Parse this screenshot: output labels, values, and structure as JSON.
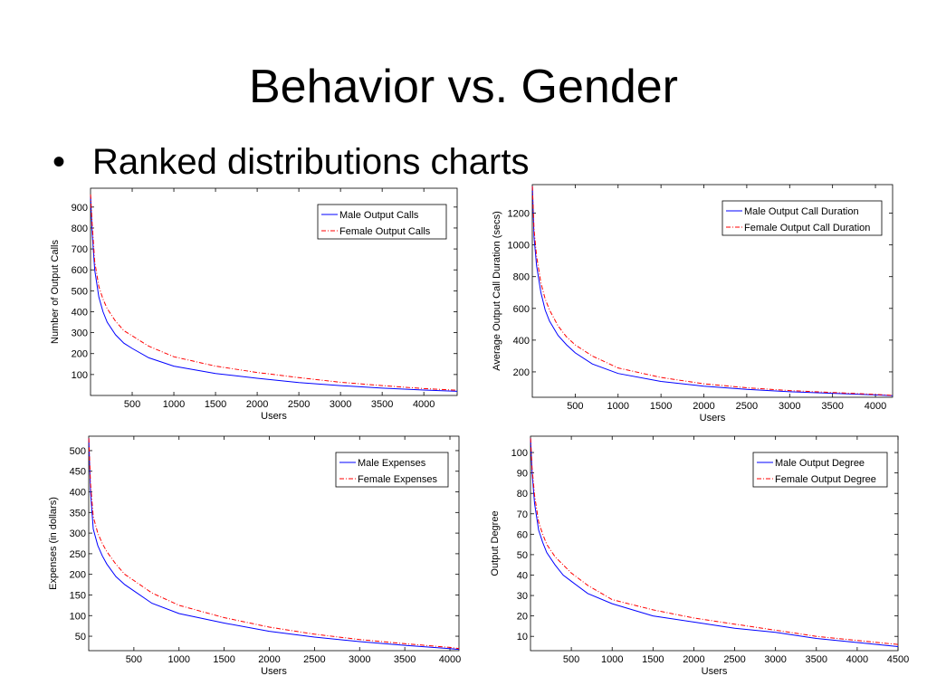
{
  "slide": {
    "title": "Behavior vs. Gender",
    "bullet_symbol": "•",
    "bullet": "Ranked distributions charts"
  },
  "chart_data": [
    {
      "type": "line",
      "title": "",
      "xlabel": "Users",
      "ylabel": "Number of Output Calls",
      "xlim": [
        0,
        4400
      ],
      "ylim": [
        0,
        990
      ],
      "xticks": [
        500,
        1000,
        1500,
        2000,
        2500,
        3000,
        3500,
        4000
      ],
      "yticks": [
        100,
        200,
        300,
        400,
        500,
        600,
        700,
        800,
        900
      ],
      "grid": false,
      "legend_position": "top-right",
      "series": [
        {
          "name": "Male Output Calls",
          "color": "#0000ff",
          "style": "solid",
          "x": [
            1,
            20,
            50,
            100,
            150,
            200,
            300,
            400,
            500,
            700,
            1000,
            1500,
            2000,
            2500,
            3000,
            3500,
            4000,
            4400
          ],
          "y": [
            950,
            780,
            600,
            470,
            400,
            350,
            290,
            250,
            225,
            180,
            140,
            105,
            82,
            62,
            47,
            35,
            26,
            20
          ]
        },
        {
          "name": "Female Output Calls",
          "color": "#ff0000",
          "style": "dashdot",
          "x": [
            1,
            20,
            50,
            100,
            150,
            200,
            300,
            400,
            500,
            700,
            1000,
            1500,
            2000,
            2500,
            3000,
            3500,
            4000,
            4400
          ],
          "y": [
            960,
            820,
            640,
            520,
            460,
            415,
            355,
            310,
            285,
            235,
            185,
            140,
            110,
            85,
            63,
            47,
            33,
            25
          ]
        }
      ]
    },
    {
      "type": "line",
      "title": "",
      "xlabel": "Users",
      "ylabel": "Average Output Call Duration (secs)",
      "xlim": [
        0,
        4200
      ],
      "ylim": [
        40,
        1380
      ],
      "xticks": [
        500,
        1000,
        1500,
        2000,
        2500,
        3000,
        3500,
        4000
      ],
      "yticks": [
        200,
        400,
        600,
        800,
        1000,
        1200
      ],
      "grid": false,
      "legend_position": "top-right",
      "series": [
        {
          "name": "Male Output Call Duration",
          "color": "#0000ff",
          "style": "solid",
          "x": [
            1,
            20,
            50,
            100,
            150,
            200,
            300,
            400,
            500,
            700,
            1000,
            1500,
            2000,
            2500,
            3000,
            3500,
            4000,
            4200
          ],
          "y": [
            1370,
            1050,
            870,
            700,
            590,
            520,
            430,
            370,
            320,
            250,
            190,
            140,
            110,
            90,
            75,
            65,
            55,
            50
          ]
        },
        {
          "name": "Female Output Call Duration",
          "color": "#ff0000",
          "style": "dashdot",
          "x": [
            1,
            20,
            50,
            100,
            150,
            200,
            300,
            400,
            500,
            700,
            1000,
            1500,
            2000,
            2500,
            3000,
            3500,
            4000,
            4200
          ],
          "y": [
            1370,
            1100,
            930,
            760,
            660,
            590,
            490,
            420,
            370,
            300,
            225,
            165,
            125,
            100,
            82,
            70,
            58,
            52
          ]
        }
      ]
    },
    {
      "type": "line",
      "title": "",
      "xlabel": "Users",
      "ylabel": "Expenses (in dollars)",
      "xlim": [
        0,
        4100
      ],
      "ylim": [
        15,
        535
      ],
      "xticks": [
        500,
        1000,
        1500,
        2000,
        2500,
        3000,
        3500,
        4000
      ],
      "yticks": [
        50,
        100,
        150,
        200,
        250,
        300,
        350,
        400,
        450,
        500
      ],
      "grid": false,
      "legend_position": "top-right",
      "series": [
        {
          "name": "Male Expenses",
          "color": "#0000ff",
          "style": "solid",
          "x": [
            1,
            20,
            50,
            100,
            150,
            200,
            300,
            400,
            500,
            700,
            1000,
            1500,
            2000,
            2500,
            3000,
            3500,
            4000,
            4100
          ],
          "y": [
            530,
            400,
            310,
            270,
            245,
            225,
            195,
            175,
            160,
            130,
            105,
            82,
            62,
            48,
            37,
            28,
            20,
            18
          ]
        },
        {
          "name": "Female Expenses",
          "color": "#ff0000",
          "style": "dashdot",
          "x": [
            1,
            20,
            50,
            100,
            150,
            200,
            300,
            400,
            500,
            700,
            1000,
            1500,
            2000,
            2500,
            3000,
            3500,
            4000,
            4100
          ],
          "y": [
            530,
            420,
            340,
            300,
            275,
            255,
            225,
            200,
            185,
            155,
            125,
            95,
            72,
            55,
            42,
            32,
            23,
            20
          ]
        }
      ]
    },
    {
      "type": "line",
      "title": "",
      "xlabel": "Users",
      "ylabel": "Output Degree",
      "xlim": [
        0,
        4500
      ],
      "ylim": [
        3,
        108
      ],
      "xticks": [
        500,
        1000,
        1500,
        2000,
        2500,
        3000,
        3500,
        4000,
        4500
      ],
      "yticks": [
        10,
        20,
        30,
        40,
        50,
        60,
        70,
        80,
        90,
        100
      ],
      "grid": false,
      "legend_position": "top-right",
      "series": [
        {
          "name": "Male Output Degree",
          "color": "#0000ff",
          "style": "solid",
          "x": [
            1,
            20,
            50,
            100,
            150,
            200,
            300,
            400,
            500,
            700,
            1000,
            1500,
            2000,
            2500,
            3000,
            3500,
            4000,
            4500
          ],
          "y": [
            107,
            90,
            75,
            62,
            56,
            51,
            45,
            40,
            37,
            31,
            26,
            20,
            17,
            14,
            12,
            9,
            7,
            5
          ]
        },
        {
          "name": "Female Output Degree",
          "color": "#ff0000",
          "style": "dashdot",
          "x": [
            1,
            20,
            50,
            100,
            150,
            200,
            300,
            400,
            500,
            700,
            1000,
            1500,
            2000,
            2500,
            3000,
            3500,
            4000,
            4500
          ],
          "y": [
            107,
            92,
            79,
            66,
            60,
            55,
            49,
            45,
            41,
            35,
            28,
            23,
            19,
            16,
            13,
            10,
            8,
            6
          ]
        }
      ]
    }
  ]
}
